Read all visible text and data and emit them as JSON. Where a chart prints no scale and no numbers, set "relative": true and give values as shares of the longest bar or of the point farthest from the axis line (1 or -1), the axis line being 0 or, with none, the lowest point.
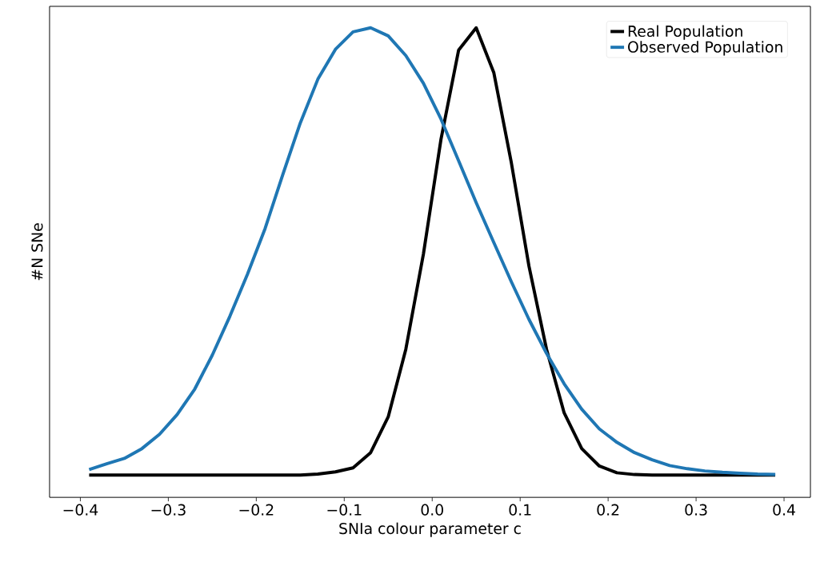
{
  "chart_data": {
    "type": "line",
    "relative": true,
    "xlabel": "SNIa colour parameter c",
    "ylabel": "#N SNe",
    "x": [
      -0.39,
      -0.37,
      -0.35,
      -0.33,
      -0.31,
      -0.29,
      -0.27,
      -0.25,
      -0.23,
      -0.21,
      -0.19,
      -0.17,
      -0.15,
      -0.13,
      -0.11,
      -0.09,
      -0.07,
      -0.05,
      -0.03,
      -0.01,
      0.01,
      0.03,
      0.05,
      0.07,
      0.09,
      0.11,
      0.13,
      0.15,
      0.17,
      0.19,
      0.21,
      0.23,
      0.25,
      0.27,
      0.29,
      0.31,
      0.33,
      0.35,
      0.37,
      0.39
    ],
    "xlim": [
      -0.435,
      0.43
    ],
    "xticks": [
      {
        "value": -0.4,
        "label": "−0.4"
      },
      {
        "value": -0.3,
        "label": "−0.3"
      },
      {
        "value": -0.2,
        "label": "−0.2"
      },
      {
        "value": -0.1,
        "label": "−0.1"
      },
      {
        "value": 0,
        "label": "0.0"
      },
      {
        "value": 0.1,
        "label": "0.1"
      },
      {
        "value": 0.2,
        "label": "0.2"
      },
      {
        "value": 0.3,
        "label": "0.3"
      },
      {
        "value": 0.4,
        "label": "0.4"
      }
    ],
    "series": [
      {
        "name": "Real Population",
        "color": "#000000",
        "values": [
          0,
          0,
          0,
          0,
          0,
          0,
          0,
          0,
          0,
          0,
          0,
          0,
          0,
          0.002,
          0.007,
          0.016,
          0.05,
          0.13,
          0.281,
          0.494,
          0.751,
          0.95,
          1.0,
          0.9,
          0.698,
          0.467,
          0.281,
          0.139,
          0.059,
          0.02,
          0.005,
          0.001,
          0,
          0,
          0,
          0,
          0,
          0,
          0,
          0
        ]
      },
      {
        "name": "Observed Population",
        "color": "#1f77b4",
        "values": [
          0.012,
          0.025,
          0.037,
          0.059,
          0.091,
          0.135,
          0.192,
          0.268,
          0.355,
          0.449,
          0.551,
          0.671,
          0.787,
          0.885,
          0.952,
          0.991,
          1.0,
          0.982,
          0.938,
          0.876,
          0.796,
          0.703,
          0.609,
          0.52,
          0.432,
          0.348,
          0.272,
          0.204,
          0.147,
          0.103,
          0.073,
          0.05,
          0.034,
          0.021,
          0.014,
          0.009,
          0.006,
          0.004,
          0.002,
          0.001
        ]
      }
    ],
    "legend": "top right",
    "grid": false,
    "marker": "none",
    "line_style": "solid"
  }
}
